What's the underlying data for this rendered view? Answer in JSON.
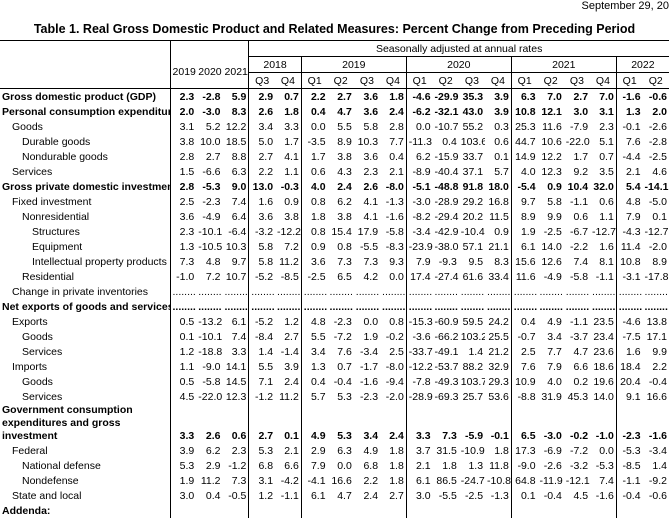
{
  "header": {
    "date": "September 29, 20",
    "title": "Table 1. Real Gross Domestic Product and Related Measures: Percent Change from Preceding Period"
  },
  "table": {
    "subheader": "Seasonally adjusted at annual rates",
    "annual": [
      "2019",
      "2020",
      "2021"
    ],
    "quarter_groups": [
      {
        "year": "2018",
        "quarters": [
          "Q3",
          "Q4"
        ]
      },
      {
        "year": "2019",
        "quarters": [
          "Q1",
          "Q2",
          "Q3",
          "Q4"
        ]
      },
      {
        "year": "2020",
        "quarters": [
          "Q1",
          "Q2",
          "Q3",
          "Q4"
        ]
      },
      {
        "year": "2021",
        "quarters": [
          "Q1",
          "Q2",
          "Q3",
          "Q4"
        ]
      },
      {
        "year": "2022",
        "quarters": [
          "Q1",
          "Q2"
        ]
      }
    ],
    "rows": [
      {
        "label": "Gross domestic product (GDP)",
        "values": [
          "2.3",
          "-2.8",
          "5.9",
          "2.9",
          "0.7",
          "2.2",
          "2.7",
          "3.6",
          "1.8",
          "-4.6",
          "-29.9",
          "35.3",
          "3.9",
          "6.3",
          "7.0",
          "2.7",
          "7.0",
          "-1.6",
          "-0.6"
        ]
      },
      {
        "label": "Personal consumption expenditures",
        "values": [
          "2.0",
          "-3.0",
          "8.3",
          "2.6",
          "1.8",
          "0.4",
          "4.7",
          "3.6",
          "2.4",
          "-6.2",
          "-32.1",
          "43.0",
          "3.9",
          "10.8",
          "12.1",
          "3.0",
          "3.1",
          "1.3",
          "2.0"
        ]
      },
      {
        "label": "Goods",
        "values": [
          "3.1",
          "5.2",
          "12.2",
          "3.4",
          "3.3",
          "0.0",
          "5.5",
          "5.8",
          "2.8",
          "0.0",
          "-10.7",
          "55.2",
          "0.3",
          "25.3",
          "11.6",
          "-7.9",
          "2.3",
          "-0.1",
          "-2.6"
        ]
      },
      {
        "label": "Durable goods",
        "values": [
          "3.8",
          "10.0",
          "18.5",
          "5.0",
          "1.7",
          "-3.5",
          "8.9",
          "10.3",
          "7.7",
          "-11.3",
          "0.4",
          "103.6",
          "0.6",
          "44.7",
          "10.6",
          "-22.0",
          "5.1",
          "7.6",
          "-2.8"
        ]
      },
      {
        "label": "Nondurable goods",
        "values": [
          "2.8",
          "2.7",
          "8.8",
          "2.7",
          "4.1",
          "1.7",
          "3.8",
          "3.6",
          "0.4",
          "6.2",
          "-15.9",
          "33.7",
          "0.1",
          "14.9",
          "12.2",
          "1.7",
          "0.7",
          "-4.4",
          "-2.5"
        ]
      },
      {
        "label": "Services",
        "values": [
          "1.5",
          "-6.6",
          "6.3",
          "2.2",
          "1.1",
          "0.6",
          "4.3",
          "2.3",
          "2.1",
          "-8.9",
          "-40.4",
          "37.1",
          "5.7",
          "4.0",
          "12.3",
          "9.2",
          "3.5",
          "2.1",
          "4.6"
        ]
      },
      {
        "label": "Gross private domestic investment",
        "values": [
          "2.8",
          "-5.3",
          "9.0",
          "13.0",
          "-0.3",
          "4.0",
          "2.4",
          "2.6",
          "-8.0",
          "-5.1",
          "-48.8",
          "91.8",
          "18.0",
          "-5.4",
          "0.9",
          "10.4",
          "32.0",
          "5.4",
          "-14.1"
        ]
      },
      {
        "label": "Fixed investment",
        "values": [
          "2.5",
          "-2.3",
          "7.4",
          "1.6",
          "0.9",
          "0.8",
          "6.2",
          "4.1",
          "-1.3",
          "-3.0",
          "-28.9",
          "29.2",
          "16.8",
          "9.7",
          "5.8",
          "-1.1",
          "0.6",
          "4.8",
          "-5.0"
        ]
      },
      {
        "label": "Nonresidential",
        "values": [
          "3.6",
          "-4.9",
          "6.4",
          "3.6",
          "3.8",
          "1.8",
          "3.8",
          "4.1",
          "-1.6",
          "-8.2",
          "-29.4",
          "20.2",
          "11.5",
          "8.9",
          "9.9",
          "0.6",
          "1.1",
          "7.9",
          "0.1"
        ]
      },
      {
        "label": "Structures",
        "values": [
          "2.3",
          "-10.1",
          "-6.4",
          "-3.2",
          "-12.2",
          "0.8",
          "15.4",
          "17.9",
          "-5.8",
          "-3.4",
          "-42.9",
          "-10.4",
          "0.9",
          "1.9",
          "-2.5",
          "-6.7",
          "-12.7",
          "-4.3",
          "-12.7"
        ]
      },
      {
        "label": "Equipment",
        "values": [
          "1.3",
          "-10.5",
          "10.3",
          "5.8",
          "7.2",
          "0.9",
          "0.8",
          "-5.5",
          "-8.3",
          "-23.9",
          "-38.0",
          "57.1",
          "21.1",
          "6.1",
          "14.0",
          "-2.2",
          "1.6",
          "11.4",
          "-2.0"
        ]
      },
      {
        "label": "Intellectual property products",
        "values": [
          "7.3",
          "4.8",
          "9.7",
          "5.8",
          "11.2",
          "3.6",
          "7.3",
          "7.3",
          "9.3",
          "7.9",
          "-9.3",
          "9.5",
          "8.3",
          "15.6",
          "12.6",
          "7.4",
          "8.1",
          "10.8",
          "8.9"
        ]
      },
      {
        "label": "Residential",
        "values": [
          "-1.0",
          "7.2",
          "10.7",
          "-5.2",
          "-8.5",
          "-2.5",
          "6.5",
          "4.2",
          "0.0",
          "17.4",
          "-27.4",
          "61.6",
          "33.4",
          "11.6",
          "-4.9",
          "-5.8",
          "-1.1",
          "-3.1",
          "-17.8"
        ]
      },
      {
        "label": "Change in private inventories",
        "values": [
          "........",
          "........",
          "........",
          "........",
          "........",
          "........",
          "........",
          "........",
          "........",
          "........",
          "........",
          "........",
          "........",
          "........",
          "........",
          "........",
          "........",
          "........",
          "........"
        ]
      },
      {
        "label": "Net exports of goods and services",
        "values": [
          "........",
          "........",
          "........",
          "........",
          "........",
          "........",
          "........",
          "........",
          "........",
          "........",
          "........",
          "........",
          "........",
          "........",
          "........",
          "........",
          "........",
          "........",
          "........"
        ]
      },
      {
        "label": "Exports",
        "values": [
          "0.5",
          "-13.2",
          "6.1",
          "-5.2",
          "1.2",
          "4.8",
          "-2.3",
          "0.0",
          "0.8",
          "-15.3",
          "-60.9",
          "59.5",
          "24.2",
          "0.4",
          "4.9",
          "-1.1",
          "23.5",
          "-4.6",
          "13.8"
        ]
      },
      {
        "label": "Goods",
        "values": [
          "0.1",
          "-10.1",
          "7.4",
          "-8.4",
          "2.7",
          "5.5",
          "-7.2",
          "1.9",
          "-0.2",
          "-3.6",
          "-66.2",
          "103.2",
          "25.5",
          "-0.7",
          "3.4",
          "-3.7",
          "23.4",
          "-7.5",
          "17.1"
        ]
      },
      {
        "label": "Services",
        "values": [
          "1.2",
          "-18.8",
          "3.3",
          "1.4",
          "-1.4",
          "3.4",
          "7.6",
          "-3.4",
          "2.5",
          "-33.7",
          "-49.1",
          "1.4",
          "21.2",
          "2.5",
          "7.7",
          "4.7",
          "23.6",
          "1.6",
          "9.9"
        ]
      },
      {
        "label": "Imports",
        "values": [
          "1.1",
          "-9.0",
          "14.1",
          "5.5",
          "3.9",
          "1.3",
          "0.7",
          "-1.7",
          "-8.0",
          "-12.2",
          "-53.7",
          "88.2",
          "32.9",
          "7.6",
          "7.9",
          "6.6",
          "18.6",
          "18.4",
          "2.2"
        ]
      },
      {
        "label": "Goods",
        "values": [
          "0.5",
          "-5.8",
          "14.5",
          "7.1",
          "2.4",
          "0.4",
          "-0.4",
          "-1.6",
          "-9.4",
          "-7.8",
          "-49.3",
          "103.7",
          "29.3",
          "10.9",
          "4.0",
          "0.2",
          "19.6",
          "20.4",
          "-0.4"
        ]
      },
      {
        "label": "Services",
        "values": [
          "4.5",
          "-22.0",
          "12.3",
          "-1.2",
          "11.2",
          "5.7",
          "5.3",
          "-2.3",
          "-2.0",
          "-28.9",
          "-69.3",
          "25.7",
          "53.6",
          "-8.8",
          "31.9",
          "45.3",
          "14.0",
          "9.1",
          "16.6"
        ]
      },
      {
        "label": "Government consumption expenditures and gross investment",
        "values": [
          "3.3",
          "2.6",
          "0.6",
          "2.7",
          "0.1",
          "4.9",
          "5.3",
          "3.4",
          "2.4",
          "3.3",
          "7.3",
          "-5.9",
          "-0.1",
          "6.5",
          "-3.0",
          "-0.2",
          "-1.0",
          "-2.3",
          "-1.6"
        ]
      },
      {
        "label": "Federal",
        "values": [
          "3.9",
          "6.2",
          "2.3",
          "5.3",
          "2.1",
          "2.9",
          "6.3",
          "4.9",
          "1.8",
          "3.7",
          "31.5",
          "-10.9",
          "1.8",
          "17.3",
          "-6.9",
          "-7.2",
          "0.0",
          "-5.3",
          "-3.4"
        ]
      },
      {
        "label": "National defense",
        "values": [
          "5.3",
          "2.9",
          "-1.2",
          "6.8",
          "6.6",
          "7.9",
          "0.0",
          "6.8",
          "1.8",
          "2.1",
          "1.8",
          "1.3",
          "11.8",
          "-9.0",
          "-2.6",
          "-3.2",
          "-5.3",
          "-8.5",
          "1.4"
        ]
      },
      {
        "label": "Nondefense",
        "values": [
          "1.9",
          "11.2",
          "7.3",
          "3.1",
          "-4.2",
          "-4.1",
          "16.6",
          "2.2",
          "1.8",
          "6.1",
          "86.5",
          "-24.7",
          "-10.8",
          "64.8",
          "-11.9",
          "-12.1",
          "7.4",
          "-1.1",
          "-9.2"
        ]
      },
      {
        "label": "State and local",
        "values": [
          "3.0",
          "0.4",
          "-0.5",
          "1.2",
          "-1.1",
          "6.1",
          "4.7",
          "2.4",
          "2.7",
          "3.0",
          "-5.5",
          "-2.5",
          "-1.3",
          "0.1",
          "-0.4",
          "4.5",
          "-1.6",
          "-0.4",
          "-0.6"
        ]
      },
      {
        "label": "Addenda:",
        "values": []
      }
    ]
  }
}
